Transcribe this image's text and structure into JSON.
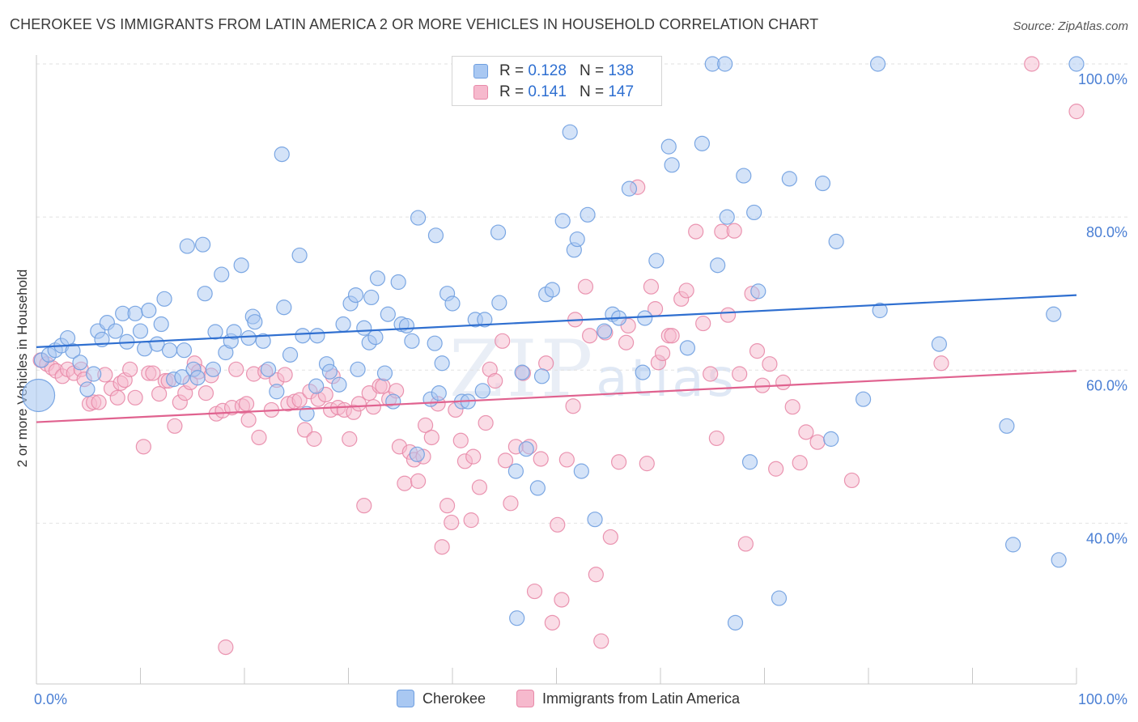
{
  "header": {
    "title": "CHEROKEE VS IMMIGRANTS FROM LATIN AMERICA 2 OR MORE VEHICLES IN HOUSEHOLD CORRELATION CHART",
    "source": "Source: ZipAtlas.com"
  },
  "watermark": {
    "main": "ZIP",
    "sub": "atlas"
  },
  "legend": {
    "r_label": "R =",
    "n_label": "N =",
    "rows": [
      {
        "r": "0.128",
        "n": "138"
      },
      {
        "r": "0.141",
        "n": "147"
      }
    ]
  },
  "colors": {
    "cherokee_fill": "#a9c8f2",
    "cherokee_stroke": "#6f9fe0",
    "cherokee_line": "#2f6fd0",
    "latin_fill": "#f6b9cd",
    "latin_stroke": "#e88aa9",
    "latin_line": "#e0628f",
    "tick_text": "#4a7fd4"
  },
  "chart_data": {
    "type": "scatter",
    "title": "CHEROKEE VS IMMIGRANTS FROM LATIN AMERICA 2 OR MORE VEHICLES IN HOUSEHOLD CORRELATION CHART",
    "xlabel": "",
    "ylabel": "2 or more Vehicles in Household",
    "xlim": [
      0,
      100
    ],
    "ylim": [
      19,
      100
    ],
    "x_tick_labels": [
      "0.0%",
      "100.0%"
    ],
    "y_ticks": [
      40,
      60,
      80,
      100
    ],
    "y_tick_labels": [
      "40.0%",
      "60.0%",
      "80.0%",
      "100.0%"
    ],
    "grid": "horizontal dashed",
    "legend_position": "bottom-center",
    "series": [
      {
        "name": "Cherokee",
        "r": 0.128,
        "n": 138,
        "trend": {
          "x": [
            0,
            100
          ],
          "y": [
            63.0,
            69.8
          ]
        },
        "points": [
          [
            0.2,
            56.7
          ],
          [
            0.5,
            61.3
          ],
          [
            1.2,
            62.0
          ],
          [
            1.8,
            62.6
          ],
          [
            2.4,
            63.2
          ],
          [
            3.0,
            64.2
          ],
          [
            3.5,
            62.5
          ],
          [
            4.2,
            61.0
          ],
          [
            4.9,
            57.5
          ],
          [
            5.5,
            59.5
          ],
          [
            5.9,
            65.1
          ],
          [
            6.3,
            64.0
          ],
          [
            6.8,
            66.2
          ],
          [
            7.6,
            65.1
          ],
          [
            8.3,
            67.4
          ],
          [
            8.7,
            63.7
          ],
          [
            9.5,
            67.4
          ],
          [
            10.0,
            65.1
          ],
          [
            10.4,
            62.8
          ],
          [
            10.8,
            67.8
          ],
          [
            11.6,
            63.4
          ],
          [
            12.0,
            66.0
          ],
          [
            12.3,
            69.3
          ],
          [
            12.8,
            62.6
          ],
          [
            13.2,
            58.8
          ],
          [
            14.0,
            59.1
          ],
          [
            14.2,
            62.6
          ],
          [
            14.5,
            76.2
          ],
          [
            15.1,
            60.1
          ],
          [
            15.5,
            59.0
          ],
          [
            16.0,
            76.4
          ],
          [
            16.2,
            70.0
          ],
          [
            17.0,
            60.1
          ],
          [
            17.2,
            65.0
          ],
          [
            17.8,
            72.5
          ],
          [
            18.2,
            62.3
          ],
          [
            18.7,
            63.8
          ],
          [
            19.0,
            65.0
          ],
          [
            19.7,
            73.7
          ],
          [
            20.4,
            64.2
          ],
          [
            20.8,
            67.0
          ],
          [
            21.0,
            66.3
          ],
          [
            21.8,
            63.8
          ],
          [
            22.3,
            60.1
          ],
          [
            23.1,
            57.2
          ],
          [
            23.6,
            88.2
          ],
          [
            23.8,
            68.2
          ],
          [
            24.4,
            62.0
          ],
          [
            25.3,
            75.0
          ],
          [
            25.6,
            64.5
          ],
          [
            26.0,
            54.3
          ],
          [
            26.9,
            57.9
          ],
          [
            27.0,
            64.5
          ],
          [
            27.9,
            60.8
          ],
          [
            28.2,
            59.8
          ],
          [
            29.1,
            58.1
          ],
          [
            29.5,
            66.0
          ],
          [
            30.2,
            68.7
          ],
          [
            30.7,
            69.8
          ],
          [
            30.9,
            60.1
          ],
          [
            31.5,
            65.5
          ],
          [
            32.0,
            63.6
          ],
          [
            32.2,
            69.5
          ],
          [
            32.6,
            64.3
          ],
          [
            32.8,
            72.0
          ],
          [
            33.5,
            59.6
          ],
          [
            33.8,
            67.3
          ],
          [
            34.3,
            55.9
          ],
          [
            34.8,
            71.5
          ],
          [
            35.1,
            66.0
          ],
          [
            35.6,
            65.8
          ],
          [
            36.1,
            63.8
          ],
          [
            36.6,
            49.0
          ],
          [
            36.7,
            79.9
          ],
          [
            37.9,
            56.2
          ],
          [
            38.4,
            77.6
          ],
          [
            38.7,
            57.0
          ],
          [
            39.0,
            60.9
          ],
          [
            39.5,
            70.0
          ],
          [
            40.0,
            68.7
          ],
          [
            40.9,
            55.9
          ],
          [
            41.5,
            55.9
          ],
          [
            42.2,
            66.6
          ],
          [
            42.9,
            57.3
          ],
          [
            43.1,
            66.6
          ],
          [
            44.4,
            78.0
          ],
          [
            44.5,
            68.8
          ],
          [
            46.1,
            46.8
          ],
          [
            46.2,
            27.6
          ],
          [
            46.7,
            59.7
          ],
          [
            47.1,
            49.7
          ],
          [
            48.2,
            44.6
          ],
          [
            48.6,
            59.2
          ],
          [
            49.0,
            69.9
          ],
          [
            49.6,
            70.5
          ],
          [
            50.6,
            79.5
          ],
          [
            51.3,
            91.1
          ],
          [
            51.7,
            75.7
          ],
          [
            52.0,
            77.1
          ],
          [
            52.4,
            46.8
          ],
          [
            53.0,
            80.3
          ],
          [
            53.7,
            40.5
          ],
          [
            54.6,
            65.1
          ],
          [
            55.4,
            67.3
          ],
          [
            56.0,
            66.8
          ],
          [
            57.0,
            83.7
          ],
          [
            58.3,
            59.7
          ],
          [
            58.5,
            66.8
          ],
          [
            59.6,
            74.3
          ],
          [
            60.8,
            89.2
          ],
          [
            61.1,
            86.8
          ],
          [
            62.6,
            62.9
          ],
          [
            64.0,
            89.6
          ],
          [
            65.0,
            100.0
          ],
          [
            65.5,
            73.7
          ],
          [
            66.2,
            100.0
          ],
          [
            66.4,
            80.0
          ],
          [
            67.2,
            27.0
          ],
          [
            68.0,
            85.4
          ],
          [
            68.6,
            48.0
          ],
          [
            69.0,
            80.6
          ],
          [
            69.4,
            70.3
          ],
          [
            71.4,
            30.2
          ],
          [
            72.4,
            85.0
          ],
          [
            75.6,
            84.4
          ],
          [
            76.4,
            51.0
          ],
          [
            76.9,
            76.8
          ],
          [
            79.5,
            56.2
          ],
          [
            80.9,
            100.0
          ],
          [
            81.1,
            67.8
          ],
          [
            86.8,
            63.4
          ],
          [
            93.3,
            52.7
          ],
          [
            93.9,
            37.2
          ],
          [
            97.8,
            67.3
          ],
          [
            98.3,
            35.2
          ],
          [
            100.0,
            100.0
          ],
          [
            55.0,
            100.0
          ],
          [
            38.3,
            63.5
          ]
        ]
      },
      {
        "name": "Immigrants from Latin America",
        "r": 0.141,
        "n": 147,
        "trend": {
          "x": [
            0,
            100
          ],
          "y": [
            53.2,
            59.9
          ]
        },
        "points": [
          [
            0.4,
            61.3
          ],
          [
            1.0,
            60.8
          ],
          [
            1.5,
            60.3
          ],
          [
            1.9,
            59.9
          ],
          [
            2.5,
            59.2
          ],
          [
            3.0,
            60.1
          ],
          [
            3.6,
            59.6
          ],
          [
            4.3,
            60.1
          ],
          [
            4.6,
            58.8
          ],
          [
            5.1,
            55.6
          ],
          [
            5.5,
            55.8
          ],
          [
            6.0,
            55.8
          ],
          [
            6.6,
            59.4
          ],
          [
            7.2,
            57.6
          ],
          [
            7.8,
            56.4
          ],
          [
            8.1,
            58.3
          ],
          [
            8.5,
            58.7
          ],
          [
            9.0,
            60.1
          ],
          [
            9.5,
            56.4
          ],
          [
            10.3,
            50.0
          ],
          [
            10.8,
            59.6
          ],
          [
            11.2,
            59.6
          ],
          [
            11.8,
            56.9
          ],
          [
            12.4,
            58.6
          ],
          [
            12.7,
            58.6
          ],
          [
            13.3,
            52.7
          ],
          [
            13.8,
            55.8
          ],
          [
            14.3,
            57.0
          ],
          [
            14.8,
            58.4
          ],
          [
            15.2,
            60.9
          ],
          [
            15.6,
            59.8
          ],
          [
            16.3,
            57.0
          ],
          [
            16.8,
            59.3
          ],
          [
            17.3,
            54.3
          ],
          [
            17.9,
            54.7
          ],
          [
            18.2,
            23.8
          ],
          [
            18.8,
            55.1
          ],
          [
            19.2,
            60.1
          ],
          [
            19.8,
            55.3
          ],
          [
            20.2,
            55.6
          ],
          [
            20.4,
            53.5
          ],
          [
            20.9,
            59.5
          ],
          [
            21.4,
            51.2
          ],
          [
            22.0,
            59.8
          ],
          [
            22.6,
            54.8
          ],
          [
            23.1,
            58.7
          ],
          [
            23.9,
            59.4
          ],
          [
            24.2,
            55.6
          ],
          [
            24.8,
            55.9
          ],
          [
            25.3,
            56.1
          ],
          [
            25.8,
            52.2
          ],
          [
            26.3,
            57.2
          ],
          [
            26.7,
            51.0
          ],
          [
            27.1,
            56.2
          ],
          [
            27.8,
            56.8
          ],
          [
            28.3,
            54.8
          ],
          [
            28.5,
            59.2
          ],
          [
            29.0,
            55.1
          ],
          [
            29.6,
            54.8
          ],
          [
            30.1,
            51.0
          ],
          [
            30.5,
            54.5
          ],
          [
            31.0,
            55.6
          ],
          [
            31.5,
            42.3
          ],
          [
            32.0,
            57.0
          ],
          [
            32.4,
            55.2
          ],
          [
            33.0,
            57.9
          ],
          [
            33.3,
            57.9
          ],
          [
            33.9,
            56.2
          ],
          [
            34.6,
            57.3
          ],
          [
            34.9,
            50.0
          ],
          [
            35.4,
            45.2
          ],
          [
            35.9,
            49.3
          ],
          [
            36.3,
            48.3
          ],
          [
            36.7,
            45.5
          ],
          [
            37.2,
            48.7
          ],
          [
            37.4,
            52.8
          ],
          [
            38.0,
            51.2
          ],
          [
            38.6,
            55.6
          ],
          [
            39.0,
            36.9
          ],
          [
            39.5,
            42.3
          ],
          [
            39.9,
            40.1
          ],
          [
            40.3,
            54.8
          ],
          [
            40.8,
            50.8
          ],
          [
            41.2,
            48.1
          ],
          [
            41.8,
            40.4
          ],
          [
            42.0,
            48.7
          ],
          [
            42.6,
            44.7
          ],
          [
            43.2,
            53.1
          ],
          [
            43.6,
            60.1
          ],
          [
            44.1,
            58.6
          ],
          [
            44.8,
            63.8
          ],
          [
            45.1,
            48.2
          ],
          [
            45.6,
            42.6
          ],
          [
            46.1,
            50.0
          ],
          [
            46.8,
            59.6
          ],
          [
            47.4,
            50.0
          ],
          [
            47.9,
            31.1
          ],
          [
            48.5,
            48.4
          ],
          [
            49.0,
            60.9
          ],
          [
            49.6,
            27.0
          ],
          [
            50.1,
            39.8
          ],
          [
            50.5,
            30.0
          ],
          [
            51.0,
            48.3
          ],
          [
            51.6,
            55.3
          ],
          [
            51.8,
            66.6
          ],
          [
            52.8,
            70.9
          ],
          [
            53.2,
            64.5
          ],
          [
            53.8,
            33.3
          ],
          [
            54.3,
            24.6
          ],
          [
            54.7,
            64.9
          ],
          [
            55.2,
            38.2
          ],
          [
            56.0,
            48.0
          ],
          [
            56.7,
            63.6
          ],
          [
            56.9,
            65.8
          ],
          [
            57.8,
            83.9
          ],
          [
            58.7,
            47.8
          ],
          [
            59.1,
            70.9
          ],
          [
            59.5,
            68.0
          ],
          [
            59.8,
            61.0
          ],
          [
            60.2,
            62.2
          ],
          [
            60.8,
            64.5
          ],
          [
            61.1,
            64.5
          ],
          [
            62.0,
            69.3
          ],
          [
            62.5,
            70.4
          ],
          [
            63.4,
            78.1
          ],
          [
            64.1,
            66.1
          ],
          [
            64.8,
            59.5
          ],
          [
            65.4,
            51.1
          ],
          [
            65.9,
            78.1
          ],
          [
            66.5,
            67.2
          ],
          [
            67.1,
            78.2
          ],
          [
            67.6,
            59.5
          ],
          [
            68.2,
            37.3
          ],
          [
            68.8,
            70.0
          ],
          [
            69.3,
            62.5
          ],
          [
            69.8,
            58.0
          ],
          [
            70.5,
            60.8
          ],
          [
            71.1,
            47.1
          ],
          [
            71.8,
            58.4
          ],
          [
            72.7,
            55.2
          ],
          [
            73.4,
            47.9
          ],
          [
            74.0,
            51.9
          ],
          [
            75.1,
            50.6
          ],
          [
            78.4,
            45.6
          ],
          [
            87.0,
            60.9
          ],
          [
            95.7,
            100.0
          ],
          [
            100.0,
            93.8
          ]
        ]
      }
    ]
  }
}
